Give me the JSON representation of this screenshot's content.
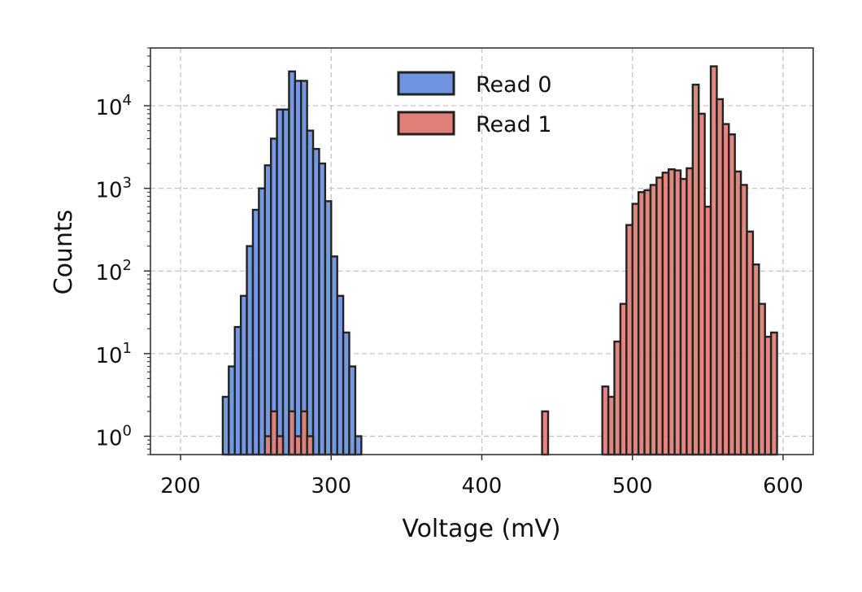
{
  "chart_data": {
    "type": "bar",
    "xlabel": "Voltage (mV)",
    "ylabel": "Counts",
    "xlim": [
      180,
      620
    ],
    "ylim": [
      0.6,
      50000
    ],
    "yscale": "log",
    "grid": true,
    "legend_position": "top-center",
    "x_ticks": [
      "200",
      "300",
      "400",
      "500",
      "600"
    ],
    "y_ticks": [
      {
        "base": "10",
        "exp": "0"
      },
      {
        "base": "10",
        "exp": "1"
      },
      {
        "base": "10",
        "exp": "2"
      },
      {
        "base": "10",
        "exp": "3"
      },
      {
        "base": "10",
        "exp": "4"
      }
    ],
    "bin_width": 4,
    "series": [
      {
        "name": "Read 0",
        "color": "#6f95e0",
        "bins": [
          [
            228,
            3
          ],
          [
            232,
            7
          ],
          [
            236,
            21
          ],
          [
            240,
            50
          ],
          [
            244,
            200
          ],
          [
            248,
            550
          ],
          [
            252,
            1000
          ],
          [
            256,
            1900
          ],
          [
            260,
            4000
          ],
          [
            264,
            9000
          ],
          [
            268,
            9000
          ],
          [
            272,
            26000
          ],
          [
            276,
            20000
          ],
          [
            280,
            20000
          ],
          [
            284,
            5000
          ],
          [
            288,
            3000
          ],
          [
            292,
            2000
          ],
          [
            296,
            700
          ],
          [
            300,
            150
          ],
          [
            304,
            50
          ],
          [
            308,
            18
          ],
          [
            312,
            7
          ],
          [
            316,
            1
          ]
        ]
      },
      {
        "name": "Read 1",
        "color": "#e07f78",
        "bins": [
          [
            256,
            1
          ],
          [
            260,
            2
          ],
          [
            264,
            1
          ],
          [
            272,
            2
          ],
          [
            276,
            1
          ],
          [
            280,
            2
          ],
          [
            284,
            1
          ],
          [
            440,
            2
          ],
          [
            480,
            4
          ],
          [
            484,
            3
          ],
          [
            488,
            14
          ],
          [
            492,
            40
          ],
          [
            496,
            360
          ],
          [
            500,
            650
          ],
          [
            504,
            900
          ],
          [
            508,
            950
          ],
          [
            512,
            1100
          ],
          [
            516,
            1350
          ],
          [
            520,
            1550
          ],
          [
            524,
            1700
          ],
          [
            528,
            1650
          ],
          [
            532,
            1300
          ],
          [
            536,
            1750
          ],
          [
            540,
            18000
          ],
          [
            544,
            8000
          ],
          [
            548,
            600
          ],
          [
            552,
            30000
          ],
          [
            556,
            12000
          ],
          [
            560,
            6000
          ],
          [
            564,
            4500
          ],
          [
            568,
            1600
          ],
          [
            572,
            1100
          ],
          [
            576,
            300
          ],
          [
            580,
            120
          ],
          [
            584,
            40
          ],
          [
            588,
            16
          ],
          [
            592,
            18
          ]
        ]
      }
    ]
  }
}
